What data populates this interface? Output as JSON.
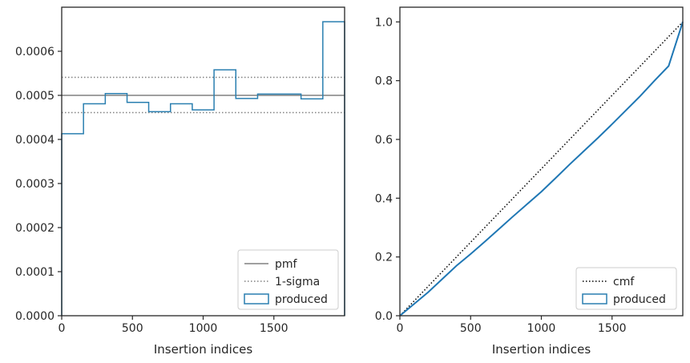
{
  "chart_data": [
    {
      "type": "histogram",
      "xlabel": "Insertion indices",
      "ylabel": "",
      "xlim": [
        0,
        2000
      ],
      "ylim": [
        0,
        0.0007
      ],
      "xticks": [
        0,
        500,
        1000,
        1500
      ],
      "xtick_labels": [
        "0",
        "500",
        "1000",
        "1500"
      ],
      "yticks": [
        0,
        0.0001,
        0.0002,
        0.0003,
        0.0004,
        0.0005,
        0.0006
      ],
      "ytick_labels": [
        "0.0000",
        "0.0001",
        "0.0002",
        "0.0003",
        "0.0004",
        "0.0005",
        "0.0006"
      ],
      "bin_edges": [
        0,
        154,
        308,
        462,
        615,
        769,
        923,
        1077,
        1231,
        1385,
        1538,
        1692,
        1846,
        2000
      ],
      "bin_values": [
        0.000413,
        0.000481,
        0.000504,
        0.000484,
        0.000463,
        0.000481,
        0.000467,
        0.000558,
        0.000493,
        0.000503,
        0.000503,
        0.000492,
        0.000667
      ],
      "pmf": 0.0005,
      "sigma_band": [
        0.000461,
        0.000541
      ],
      "legend": {
        "position": "lower right",
        "entries": [
          {
            "label": "pmf",
            "style": "solid",
            "color": "#808080"
          },
          {
            "label": "1-sigma",
            "style": "dotted",
            "color": "#808080"
          },
          {
            "label": "produced",
            "style": "step",
            "color": "#2a7fb0"
          }
        ]
      }
    },
    {
      "type": "line",
      "xlabel": "Insertion indices",
      "ylabel": "",
      "xlim": [
        0,
        2000
      ],
      "ylim": [
        0,
        1.05
      ],
      "xticks": [
        0,
        500,
        1000,
        1500
      ],
      "xtick_labels": [
        "0",
        "500",
        "1000",
        "1500"
      ],
      "yticks": [
        0,
        0.2,
        0.4,
        0.6,
        0.8,
        1.0
      ],
      "ytick_labels": [
        "0.0",
        "0.2",
        "0.4",
        "0.6",
        "0.8",
        "1.0"
      ],
      "series": [
        {
          "name": "cmf",
          "style": "dotted",
          "color": "#000000",
          "x": [
            0,
            2000
          ],
          "y": [
            0,
            1.0
          ]
        },
        {
          "name": "produced",
          "style": "solid",
          "color": "#1f77b4",
          "x": [
            0,
            100,
            200,
            300,
            400,
            500,
            600,
            700,
            800,
            900,
            1000,
            1100,
            1200,
            1300,
            1400,
            1500,
            1600,
            1700,
            1800,
            1900,
            2000
          ],
          "y": [
            0,
            0.04,
            0.08,
            0.125,
            0.17,
            0.21,
            0.252,
            0.295,
            0.338,
            0.38,
            0.422,
            0.468,
            0.515,
            0.56,
            0.605,
            0.652,
            0.7,
            0.748,
            0.8,
            0.85,
            1.0
          ]
        }
      ],
      "legend": {
        "position": "lower right",
        "entries": [
          {
            "label": "cmf",
            "style": "dotted",
            "color": "#000000"
          },
          {
            "label": "produced",
            "style": "step",
            "color": "#2a7fb0"
          }
        ]
      }
    }
  ]
}
